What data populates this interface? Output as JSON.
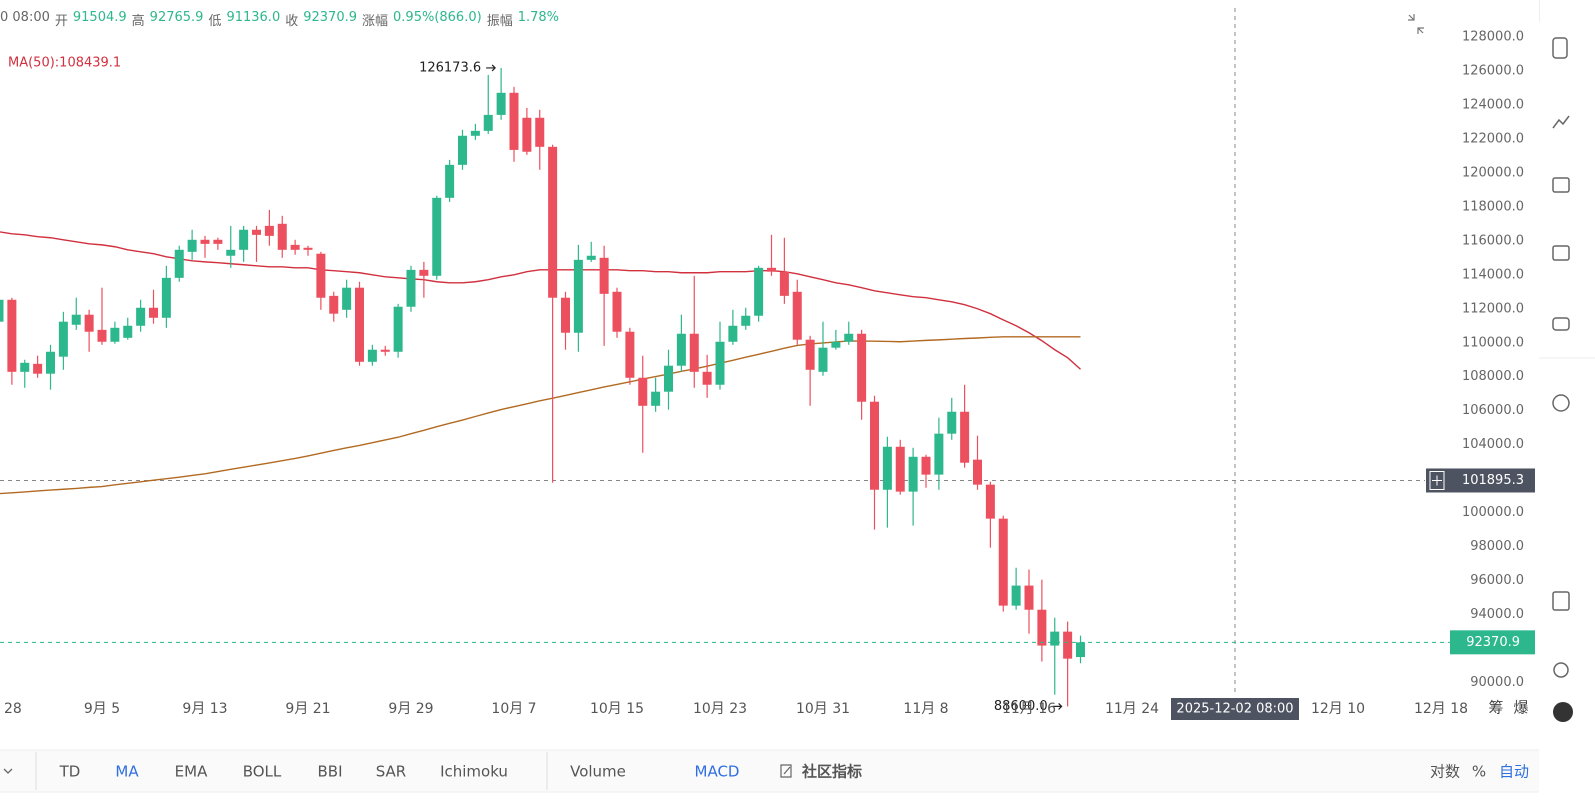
{
  "chart_data": {
    "type": "candlestick",
    "header": {
      "time": "0 08:00",
      "items": [
        {
          "label": "开",
          "text": "91504.9"
        },
        {
          "label": "高",
          "text": "92765.9"
        },
        {
          "label": "低",
          "text": "91136.0"
        },
        {
          "label": "收",
          "text": "92370.9"
        },
        {
          "label": "涨幅",
          "text": "0.95%(866.0)"
        },
        {
          "label": "振幅",
          "text": "1.78%"
        }
      ]
    },
    "categories": [
      "28",
      null,
      null,
      null,
      null,
      null,
      null,
      null,
      "9月 5",
      null,
      null,
      null,
      null,
      null,
      null,
      null,
      "9月 13",
      null,
      null,
      null,
      null,
      null,
      null,
      null,
      "9月 21",
      null,
      null,
      null,
      null,
      null,
      null,
      null,
      "9月 29",
      null,
      null,
      null,
      null,
      null,
      null,
      null,
      "10月 7",
      null,
      null,
      null,
      null,
      null,
      null,
      null,
      "10月 15",
      null,
      null,
      null,
      null,
      null,
      null,
      null,
      "10月 23",
      null,
      null,
      null,
      null,
      null,
      null,
      null,
      "10月 31",
      null,
      null,
      null,
      null,
      null,
      null,
      null,
      "11月 8",
      null,
      null,
      null,
      null,
      null,
      null,
      null,
      "11月 16",
      null,
      null,
      null,
      null,
      null,
      null,
      null,
      "11月 24",
      null,
      null,
      null,
      null,
      null,
      null,
      null,
      "2025-12-02 08:00",
      null,
      null,
      null,
      null,
      null,
      null,
      null,
      "12月 10",
      null,
      null,
      null,
      null,
      null,
      null,
      null,
      "12月 18"
    ],
    "open": [
      111240,
      112530,
      108290,
      108760,
      108180,
      109180,
      111060,
      111650,
      110760,
      110060,
      110290,
      111000,
      112060,
      111470,
      113820,
      115350,
      116060,
      116060,
      115120,
      115470,
      116650,
      116880,
      117000,
      115760,
      115590,
      115240,
      112760,
      111940,
      113240,
      108880,
      109590,
      109470,
      112120,
      114290,
      113940,
      118530,
      120470,
      122180,
      122470,
      123410,
      124710,
      123240,
      123240,
      121530,
      112650,
      110590,
      114880,
      115000,
      113000,
      110650,
      107940,
      106290,
      107120,
      108650,
      110530,
      108290,
      107530,
      110060,
      111000,
      111590,
      114410,
      114180,
      113000,
      110180,
      108290,
      109710,
      110060,
      110530,
      106530,
      101350,
      103880,
      101240,
      103290,
      102240,
      104650,
      105940,
      103120,
      101650,
      99650,
      94530,
      95710,
      94290,
      92180,
      93000,
      91504.9,
      null,
      null,
      null,
      null,
      null,
      null,
      null,
      null,
      null,
      null,
      null,
      null,
      null,
      null,
      null,
      null,
      null,
      null,
      null,
      null,
      null,
      null,
      null,
      null,
      null,
      null,
      null,
      null
    ],
    "high": [
      112650,
      112650,
      109000,
      109240,
      109880,
      111820,
      112650,
      111940,
      113240,
      111240,
      111470,
      112530,
      113120,
      114530,
      115710,
      116650,
      116290,
      116180,
      116880,
      116880,
      116880,
      117820,
      117470,
      116060,
      115710,
      115350,
      113000,
      113710,
      113590,
      109880,
      109820,
      112290,
      114530,
      114760,
      118650,
      120760,
      122530,
      122880,
      125760,
      126173.6,
      125060,
      123820,
      123710,
      121650,
      113000,
      115760,
      115940,
      115710,
      113240,
      110880,
      109240,
      107940,
      109590,
      111650,
      113940,
      109290,
      111240,
      111940,
      112060,
      114530,
      116350,
      116180,
      113710,
      110410,
      111240,
      110760,
      111240,
      110760,
      106880,
      104470,
      104290,
      103820,
      103410,
      105590,
      106760,
      107530,
      104530,
      101820,
      99820,
      96760,
      96650,
      96060,
      93820,
      93590,
      92765.9,
      null,
      null,
      null,
      null,
      null,
      null,
      null,
      null,
      null,
      null,
      null,
      null,
      null,
      null,
      null,
      null,
      null,
      null,
      null,
      null,
      null,
      null,
      null,
      null,
      null,
      null,
      null,
      null
    ],
    "low": [
      110760,
      107530,
      107350,
      107940,
      107240,
      108410,
      110760,
      109470,
      109880,
      109940,
      110180,
      110650,
      111120,
      110880,
      113590,
      114880,
      115000,
      115470,
      114410,
      114760,
      114760,
      115710,
      115000,
      115180,
      115120,
      111940,
      111240,
      111470,
      108650,
      108650,
      109240,
      109120,
      111820,
      112650,
      113710,
      118290,
      120180,
      121940,
      122290,
      123120,
      120650,
      121060,
      120180,
      101770,
      109590,
      109470,
      114760,
      109820,
      110290,
      107530,
      103530,
      105940,
      106060,
      108290,
      107350,
      106760,
      107240,
      109880,
      110760,
      111240,
      113940,
      112290,
      109880,
      106290,
      108060,
      109590,
      109880,
      105470,
      99000,
      99120,
      101060,
      99240,
      101470,
      101350,
      104290,
      102650,
      101350,
      97940,
      94180,
      94290,
      92880,
      91240,
      89290,
      88600,
      91136.0,
      null,
      null,
      null,
      null,
      null,
      null,
      null,
      null,
      null,
      null,
      null,
      null,
      null,
      null,
      null,
      null,
      null,
      null,
      null,
      null,
      null,
      null,
      null,
      null,
      null,
      null,
      null,
      null
    ],
    "close": [
      112530,
      108290,
      108820,
      108180,
      109470,
      111240,
      111650,
      110650,
      110060,
      110880,
      111000,
      112060,
      111470,
      113820,
      115470,
      116060,
      115820,
      115820,
      115470,
      116650,
      116350,
      116290,
      115470,
      115470,
      115470,
      112650,
      111710,
      113240,
      108880,
      109590,
      109470,
      112120,
      114290,
      113940,
      118530,
      120470,
      122180,
      122470,
      123410,
      124710,
      121350,
      121240,
      121530,
      112650,
      110590,
      114880,
      115120,
      112880,
      110650,
      107940,
      106290,
      107120,
      108650,
      110530,
      108290,
      107530,
      110060,
      111000,
      111590,
      114410,
      114180,
      112760,
      110180,
      108410,
      109710,
      110060,
      110530,
      106530,
      101350,
      103880,
      101240,
      103290,
      102240,
      104650,
      105940,
      102940,
      101650,
      99650,
      94530,
      95710,
      94290,
      92180,
      93000,
      91410,
      92370.9,
      null,
      null,
      null,
      null,
      null,
      null,
      null,
      null,
      null,
      null,
      null,
      null,
      null,
      null,
      null,
      null,
      null,
      null,
      null,
      null,
      null,
      null,
      null,
      null,
      null,
      null,
      null,
      null
    ],
    "up_color": "#2db78c",
    "down_color": "#ec4f5e",
    "series": [
      {
        "name": "MA(50):108439.1",
        "color": "#d1303e",
        "values": [
          116530,
          116410,
          116350,
          116240,
          116180,
          116060,
          115940,
          115820,
          115760,
          115650,
          115470,
          115350,
          115240,
          115060,
          114940,
          114820,
          114760,
          114710,
          114650,
          114590,
          114530,
          114470,
          114470,
          114410,
          114410,
          114290,
          114240,
          114180,
          114120,
          114000,
          113880,
          113820,
          113760,
          113710,
          113590,
          113530,
          113530,
          113590,
          113710,
          113880,
          114000,
          114180,
          114290,
          114290,
          114290,
          114290,
          114290,
          114290,
          114290,
          114240,
          114240,
          114180,
          114180,
          114120,
          114120,
          114120,
          114180,
          114180,
          114180,
          114240,
          114240,
          114180,
          114060,
          113880,
          113710,
          113530,
          113410,
          113240,
          113060,
          112940,
          112820,
          112710,
          112650,
          112530,
          112410,
          112240,
          112000,
          111710,
          111350,
          111000,
          110590,
          110120,
          109590,
          109120,
          108439.1,
          null,
          null,
          null,
          null,
          null,
          null,
          null,
          null,
          null,
          null,
          null,
          null,
          null,
          null,
          null,
          null,
          null,
          null,
          null,
          null,
          null,
          null,
          null,
          null,
          null,
          null,
          null,
          null
        ]
      },
      {
        "color": "#b26a22",
        "values": [
          101120,
          101170,
          101220,
          101280,
          101330,
          101380,
          101430,
          101490,
          101540,
          101640,
          101730,
          101820,
          101910,
          102000,
          102090,
          102190,
          102290,
          102420,
          102550,
          102680,
          102800,
          102930,
          103060,
          103190,
          103340,
          103500,
          103660,
          103820,
          103960,
          104120,
          104280,
          104440,
          104650,
          104850,
          105060,
          105260,
          105450,
          105660,
          105870,
          106070,
          106240,
          106410,
          106580,
          106740,
          106900,
          107070,
          107230,
          107400,
          107550,
          107700,
          107860,
          108010,
          108160,
          108320,
          108460,
          108620,
          108800,
          108970,
          109150,
          109320,
          109500,
          109680,
          109840,
          109930,
          109990,
          110050,
          110110,
          110100,
          110090,
          110080,
          110060,
          110100,
          110140,
          110170,
          110210,
          110250,
          110280,
          110320,
          110350,
          110350,
          110350,
          110350,
          110350,
          110350,
          110350,
          null,
          null,
          null,
          null,
          null,
          null,
          null,
          null,
          null,
          null,
          null,
          null,
          null,
          null,
          null,
          null,
          null,
          null,
          null,
          null,
          null,
          null,
          null,
          null,
          null,
          null,
          null,
          null
        ]
      }
    ],
    "ylim": [
      87800,
      129700
    ],
    "yticks": [
      {
        "value": 90000,
        "label": "90000.0"
      },
      {
        "value": 92000,
        "label": "92000.0"
      },
      {
        "value": 94000,
        "label": "94000.0"
      },
      {
        "value": 96000,
        "label": "96000.0"
      },
      {
        "value": 98000,
        "label": "98000.0"
      },
      {
        "value": 100000,
        "label": "100000.0"
      },
      {
        "value": 102000,
        "label": "102000.0"
      },
      {
        "value": 104000,
        "label": "104000.0"
      },
      {
        "value": 106000,
        "label": "106000.0"
      },
      {
        "value": 108000,
        "label": "108000.0"
      },
      {
        "value": 110000,
        "label": "110000.0"
      },
      {
        "value": 112000,
        "label": "112000.0"
      },
      {
        "value": 114000,
        "label": "114000.0"
      },
      {
        "value": 116000,
        "label": "116000.0"
      },
      {
        "value": 118000,
        "label": "118000.0"
      },
      {
        "value": 120000,
        "label": "120000.0"
      },
      {
        "value": 122000,
        "label": "122000.0"
      },
      {
        "value": 124000,
        "label": "124000.0"
      },
      {
        "value": 126000,
        "label": "126000.0"
      },
      {
        "value": 128000,
        "label": "128000.0"
      }
    ],
    "max_label": "126173.6",
    "min_label": "88600.0",
    "crosshair": {
      "value": 101895.3,
      "x": "2025-12-02 08:00"
    },
    "grid": false
  },
  "toolbar": {
    "indicators": [
      {
        "text": "TD"
      },
      {
        "text": "MA",
        "active": true
      },
      {
        "text": "EMA"
      },
      {
        "text": "BOLL"
      },
      {
        "text": "BBI"
      },
      {
        "text": "SAR"
      },
      {
        "text": "Ichimoku"
      }
    ],
    "panes": [
      {
        "text": "Volume"
      },
      {
        "text": "MACD",
        "active": true
      },
      {
        "text": "社区指标",
        "bold": true
      }
    ],
    "scale": [
      {
        "text": "对数"
      },
      {
        "text": "%"
      },
      {
        "text": "自动",
        "active": true
      }
    ],
    "side_marks": [
      "筹",
      "爆"
    ]
  }
}
